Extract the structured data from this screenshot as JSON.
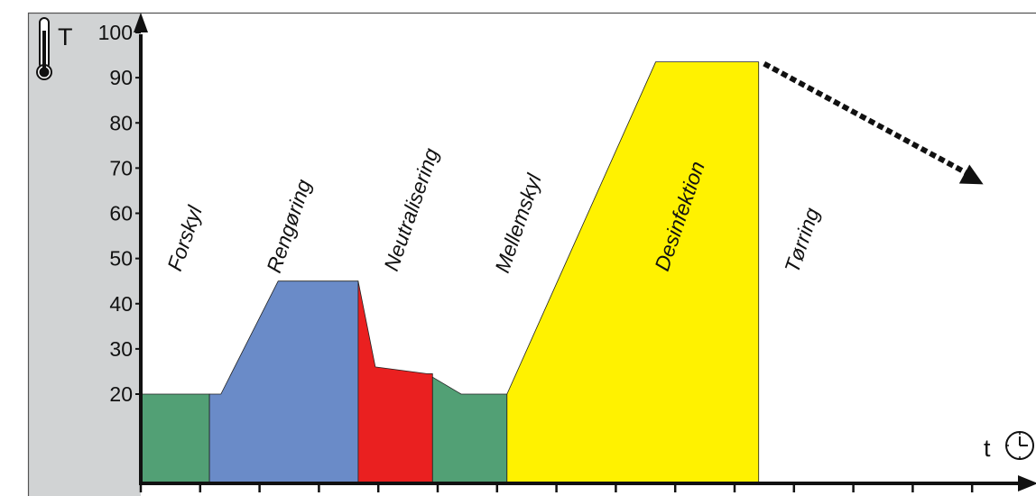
{
  "chart_data": {
    "type": "area",
    "y_axis": {
      "symbol": "T",
      "ticks": [
        "20",
        "30",
        "40",
        "50",
        "60",
        "70",
        "80",
        "90",
        "100"
      ],
      "tick_values": [
        20,
        30,
        40,
        50,
        60,
        70,
        80,
        90,
        100
      ],
      "highlight_tick": "90",
      "highlight_color": "#e8302a",
      "icon": "thermometer-icon"
    },
    "x_axis": {
      "symbol": "t",
      "icon": "clock-icon",
      "tick_count": 15
    },
    "phases": [
      {
        "label": "Forskyl",
        "color": "#52a075",
        "x": [
          0,
          1.2
        ],
        "profile": [
          [
            0,
            20
          ],
          [
            1.2,
            20
          ]
        ]
      },
      {
        "label": "Rengøring",
        "color": "#6a8bc8",
        "x": [
          1.2,
          3.8
        ],
        "profile": [
          [
            1.2,
            20
          ],
          [
            1.4,
            20
          ],
          [
            2.4,
            45
          ],
          [
            3.8,
            45
          ]
        ]
      },
      {
        "label": "Neutralisering",
        "color": "#ea2020",
        "x": [
          3.8,
          5.1
        ],
        "profile": [
          [
            3.8,
            45
          ],
          [
            4.1,
            26
          ],
          [
            5.0,
            24.5
          ]
        ]
      },
      {
        "label": "Mellemskyl",
        "color": "#52a075",
        "x": [
          5.1,
          6.4
        ],
        "profile": [
          [
            5.0,
            24.5
          ],
          [
            5.6,
            20
          ],
          [
            6.4,
            20
          ]
        ]
      },
      {
        "label": "Desinfektion",
        "color": "#fff200",
        "x": [
          6.4,
          10.8
        ],
        "profile": [
          [
            6.4,
            20
          ],
          [
            9.0,
            93.5
          ],
          [
            10.8,
            93.5
          ]
        ]
      },
      {
        "label": "Tørring",
        "color": null,
        "x": [
          10.8,
          14.8
        ],
        "profile": [
          [
            10.8,
            93.5
          ],
          [
            14.6,
            67
          ]
        ],
        "dashed": true
      }
    ],
    "colors": {
      "panel": "#d1d3d4",
      "axis": "#111111",
      "frame": "#555555"
    }
  }
}
